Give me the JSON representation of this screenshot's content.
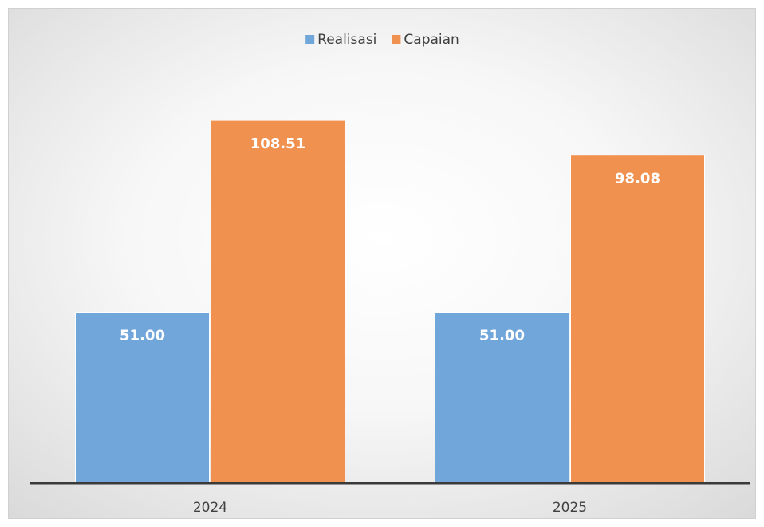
{
  "chart_data": {
    "type": "bar",
    "categories": [
      "2024",
      "2025"
    ],
    "series": [
      {
        "name": "Realisasi",
        "color": "#71a6db",
        "values": [
          51,
          51
        ],
        "value_labels": [
          "51.00",
          "51.00"
        ]
      },
      {
        "name": "Capaian",
        "color": "#f0914f",
        "values": [
          108.51,
          98.08
        ],
        "value_labels": [
          "108.51",
          "98.08"
        ]
      }
    ],
    "ylim": [
      0,
      120
    ],
    "legend": "top"
  }
}
